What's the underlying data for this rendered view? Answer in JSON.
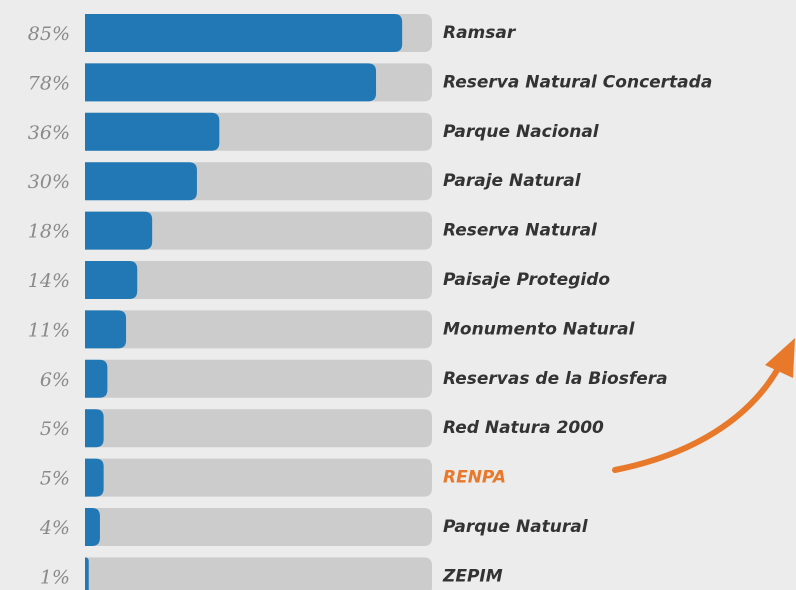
{
  "chart_data": {
    "type": "bar",
    "orientation": "horizontal",
    "categories": [
      "Ramsar",
      "Reserva Natural Concertada",
      "Parque Nacional",
      "Paraje Natural",
      "Reserva Natural",
      "Paisaje Protegido",
      "Monumento Natural",
      "Reservas de la Biosfera",
      "Red Natura 2000",
      "RENPA",
      "Parque Natural",
      "ZEPIM"
    ],
    "values": [
      85,
      78,
      36,
      30,
      18,
      14,
      11,
      6,
      5,
      5,
      4,
      1
    ],
    "value_labels": [
      "85%",
      "78%",
      "36%",
      "30%",
      "18%",
      "14%",
      "11%",
      "6%",
      "5%",
      "5%",
      "4%",
      "1%"
    ],
    "color": "#2178b5",
    "track_color": "#cccccc",
    "category_colors": [
      "#333333",
      "#333333",
      "#333333",
      "#333333",
      "#333333",
      "#333333",
      "#333333",
      "#333333",
      "#333333",
      "#e8782a",
      "#333333",
      "#333333"
    ],
    "xlim": [
      0,
      93
    ]
  }
}
